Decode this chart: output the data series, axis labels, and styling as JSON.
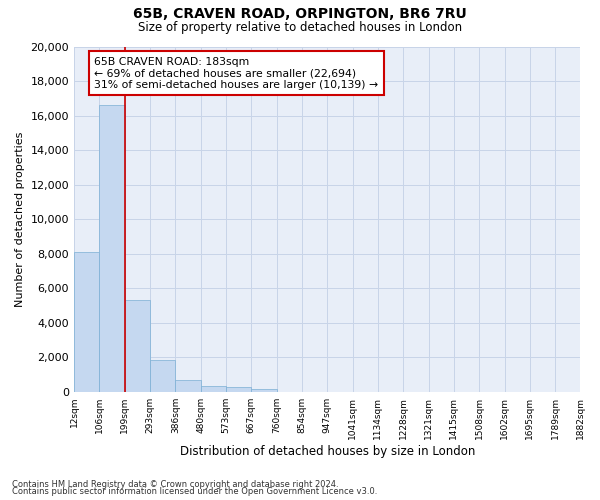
{
  "title1": "65B, CRAVEN ROAD, ORPINGTON, BR6 7RU",
  "title2": "Size of property relative to detached houses in London",
  "xlabel": "Distribution of detached houses by size in London",
  "ylabel": "Number of detached properties",
  "bar_values": [
    8100,
    16600,
    5300,
    1850,
    700,
    330,
    270,
    200,
    0,
    0,
    0,
    0,
    0,
    0,
    0,
    0,
    0,
    0,
    0,
    0
  ],
  "bar_labels": [
    "12sqm",
    "106sqm",
    "199sqm",
    "293sqm",
    "386sqm",
    "480sqm",
    "573sqm",
    "667sqm",
    "760sqm",
    "854sqm",
    "947sqm",
    "1041sqm",
    "1134sqm",
    "1228sqm",
    "1321sqm",
    "1415sqm",
    "1508sqm",
    "1602sqm",
    "1695sqm",
    "1789sqm",
    "1882sqm"
  ],
  "bar_color": "#c5d8f0",
  "bar_edge_color": "#7bafd4",
  "grid_color": "#c8d4e8",
  "background_color": "#e8eef8",
  "red_line_x": 2.0,
  "red_line_color": "#cc0000",
  "annotation_text": "65B CRAVEN ROAD: 183sqm\n← 69% of detached houses are smaller (22,694)\n31% of semi-detached houses are larger (10,139) →",
  "annotation_box_color": "#ffffff",
  "annotation_box_edge": "#cc0000",
  "ylim": [
    0,
    20000
  ],
  "yticks": [
    0,
    2000,
    4000,
    6000,
    8000,
    10000,
    12000,
    14000,
    16000,
    18000,
    20000
  ],
  "footer1": "Contains HM Land Registry data © Crown copyright and database right 2024.",
  "footer2": "Contains public sector information licensed under the Open Government Licence v3.0."
}
